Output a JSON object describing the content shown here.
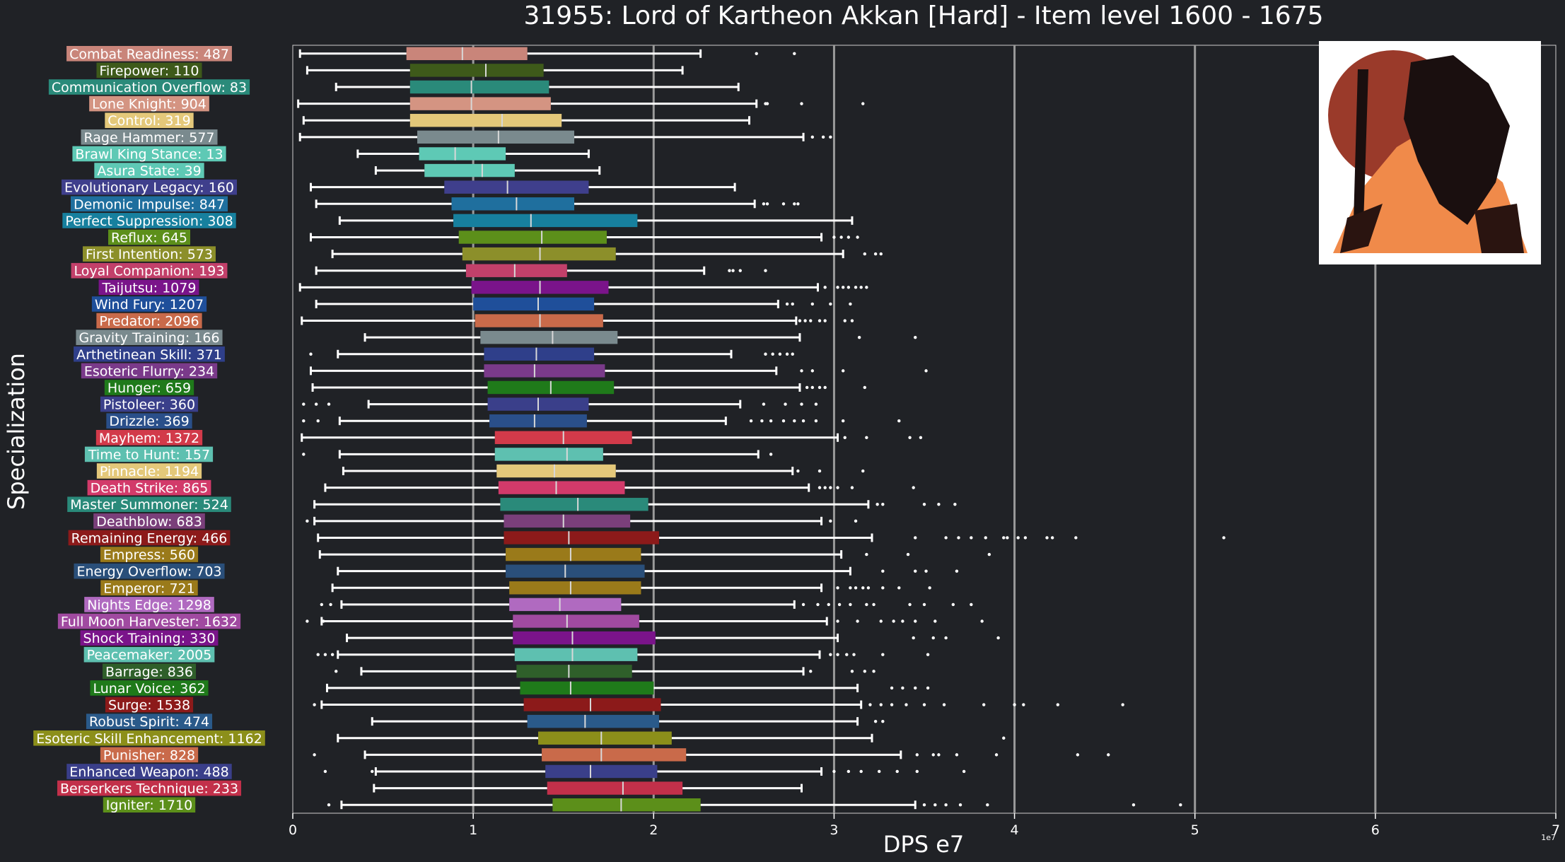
{
  "chart_data": {
    "type": "boxplot",
    "orientation": "horizontal",
    "title": "31955: Lord of Kartheon Akkan [Hard] - Item level 1600 - 1675",
    "xlabel": "DPS e7",
    "ylabel": "Specialization",
    "xlim": [
      0,
      7
    ],
    "xticks": [
      0,
      1,
      2,
      3,
      4,
      5,
      6,
      7
    ],
    "tick_labels": [
      "0",
      "1",
      "2",
      "3",
      "4",
      "5",
      "6",
      "7"
    ],
    "offset_text": "1e7",
    "grid": "vertical",
    "legend": "none",
    "image_description": "boss portrait (top-right)",
    "categories": [
      {
        "label": "Combat Readiness: 487",
        "color": "#c9857a",
        "min": 0.04,
        "q1": 0.63,
        "median": 0.94,
        "q3": 1.3,
        "max": 2.26,
        "outliers": [
          2.57,
          2.78
        ]
      },
      {
        "label": "Firepower: 110",
        "color": "#3e5a1a",
        "min": 0.08,
        "q1": 0.65,
        "median": 1.07,
        "q3": 1.39,
        "max": 2.16,
        "outliers": []
      },
      {
        "label": "Communication Overflow: 83",
        "color": "#2a8a7a",
        "min": 0.24,
        "q1": 0.65,
        "median": 0.99,
        "q3": 1.42,
        "max": 2.47,
        "outliers": []
      },
      {
        "label": "Lone Knight: 904",
        "color": "#d49482",
        "min": 0.03,
        "q1": 0.65,
        "median": 0.99,
        "q3": 1.43,
        "max": 2.57,
        "outliers": [
          2.62,
          2.63,
          2.82,
          3.16
        ]
      },
      {
        "label": "Control: 319",
        "color": "#e4c87a",
        "min": 0.06,
        "q1": 0.65,
        "median": 1.16,
        "q3": 1.49,
        "max": 2.53,
        "outliers": []
      },
      {
        "label": "Rage Hammer: 577",
        "color": "#7a8a8e",
        "min": 0.04,
        "q1": 0.69,
        "median": 1.14,
        "q3": 1.56,
        "max": 2.83,
        "outliers": [
          2.88,
          2.94,
          2.98
        ]
      },
      {
        "label": "Brawl King Stance: 13",
        "color": "#5ec9b5",
        "min": 0.36,
        "q1": 0.7,
        "median": 0.9,
        "q3": 1.18,
        "max": 1.64,
        "outliers": []
      },
      {
        "label": "Asura State: 39",
        "color": "#5ec9b5",
        "min": 0.46,
        "q1": 0.73,
        "median": 1.05,
        "q3": 1.23,
        "max": 1.7,
        "outliers": []
      },
      {
        "label": "Evolutionary Legacy: 160",
        "color": "#3f3f8c",
        "min": 0.1,
        "q1": 0.84,
        "median": 1.19,
        "q3": 1.64,
        "max": 2.45,
        "outliers": []
      },
      {
        "label": "Demonic Impulse: 847",
        "color": "#1f6f9e",
        "min": 0.13,
        "q1": 0.88,
        "median": 1.24,
        "q3": 1.56,
        "max": 2.56,
        "outliers": [
          2.61,
          2.63,
          2.72,
          2.78,
          2.8
        ]
      },
      {
        "label": "Perfect Suppression: 308",
        "color": "#17809e",
        "min": 0.26,
        "q1": 0.89,
        "median": 1.32,
        "q3": 1.91,
        "max": 3.1,
        "outliers": []
      },
      {
        "label": "Reflux: 645",
        "color": "#5c8f1a",
        "min": 0.1,
        "q1": 0.92,
        "median": 1.38,
        "q3": 1.74,
        "max": 2.93,
        "outliers": [
          3.0,
          3.04,
          3.08,
          3.13
        ]
      },
      {
        "label": "First Intention: 573",
        "color": "#8c8f2a",
        "min": 0.22,
        "q1": 0.94,
        "median": 1.37,
        "q3": 1.79,
        "max": 3.05,
        "outliers": [
          3.17,
          3.23,
          3.26
        ]
      },
      {
        "label": "Loyal Companion: 193",
        "color": "#c2406a",
        "min": 0.13,
        "q1": 0.96,
        "median": 1.23,
        "q3": 1.52,
        "max": 2.28,
        "outliers": [
          2.42,
          2.44,
          2.48,
          2.62
        ]
      },
      {
        "label": "Taijutsu: 1079",
        "color": "#7a148a",
        "min": 0.04,
        "q1": 0.99,
        "median": 1.37,
        "q3": 1.75,
        "max": 2.91,
        "outliers": [
          2.95,
          3.02,
          3.05,
          3.08,
          3.12,
          3.15,
          3.18
        ]
      },
      {
        "label": "Wind Fury: 1207",
        "color": "#1f4f9a",
        "min": 0.13,
        "q1": 1.0,
        "median": 1.36,
        "q3": 1.67,
        "max": 2.69,
        "outliers": [
          2.74,
          2.77,
          2.88,
          2.98,
          3.09
        ]
      },
      {
        "label": "Predator: 2096",
        "color": "#c96a4a",
        "min": 0.05,
        "q1": 1.01,
        "median": 1.37,
        "q3": 1.72,
        "max": 2.79,
        "outliers": [
          2.81,
          2.84,
          2.87,
          2.92,
          2.95,
          3.06,
          3.1
        ]
      },
      {
        "label": "Gravity Training: 166",
        "color": "#7a8a8e",
        "min": 0.4,
        "q1": 1.04,
        "median": 1.44,
        "q3": 1.8,
        "max": 2.81,
        "outliers": [
          3.14,
          3.45
        ]
      },
      {
        "label": "Arthetinean Skill: 371",
        "color": "#2f3f8a",
        "min": 0.25,
        "q1": 1.06,
        "median": 1.35,
        "q3": 1.67,
        "max": 2.43,
        "outliers": [
          2.62,
          2.66,
          2.7,
          2.74,
          2.77,
          0.1
        ]
      },
      {
        "label": "Esoteric Flurry: 234",
        "color": "#7a3a8a",
        "min": 0.1,
        "q1": 1.06,
        "median": 1.34,
        "q3": 1.73,
        "max": 2.68,
        "outliers": [
          2.82,
          2.88,
          3.05,
          3.51
        ]
      },
      {
        "label": "Hunger: 659",
        "color": "#1f7a1a",
        "min": 0.11,
        "q1": 1.08,
        "median": 1.43,
        "q3": 1.78,
        "max": 2.81,
        "outliers": [
          2.85,
          2.88,
          2.92,
          2.95,
          3.17
        ]
      },
      {
        "label": "Pistoleer: 360",
        "color": "#3a3f8a",
        "min": 0.42,
        "q1": 1.08,
        "median": 1.36,
        "q3": 1.64,
        "max": 2.48,
        "outliers": [
          0.06,
          0.13,
          0.2,
          2.61,
          2.73,
          2.82,
          2.9
        ]
      },
      {
        "label": "Drizzle: 369",
        "color": "#2a4f8a",
        "min": 0.26,
        "q1": 1.09,
        "median": 1.34,
        "q3": 1.63,
        "max": 2.4,
        "outliers": [
          0.06,
          0.14,
          2.54,
          2.6,
          2.65,
          2.72,
          2.78,
          2.83,
          2.9,
          3.05,
          3.36
        ]
      },
      {
        "label": "Mayhem: 1372",
        "color": "#d23a4a",
        "min": 0.05,
        "q1": 1.12,
        "median": 1.5,
        "q3": 1.88,
        "max": 3.02,
        "outliers": [
          3.06,
          3.18,
          3.42,
          3.48
        ]
      },
      {
        "label": "Time to Hunt: 157",
        "color": "#5ec0b0",
        "min": 0.26,
        "q1": 1.12,
        "median": 1.52,
        "q3": 1.72,
        "max": 2.58,
        "outliers": [
          0.06,
          2.65
        ]
      },
      {
        "label": "Pinnacle: 1194",
        "color": "#e4c87a",
        "min": 0.28,
        "q1": 1.13,
        "median": 1.45,
        "q3": 1.79,
        "max": 2.77,
        "outliers": [
          2.8,
          2.92,
          3.16
        ]
      },
      {
        "label": "Death Strike: 865",
        "color": "#d23a6a",
        "min": 0.18,
        "q1": 1.14,
        "median": 1.46,
        "q3": 1.84,
        "max": 2.86,
        "outliers": [
          2.92,
          2.95,
          2.98,
          3.02,
          3.1,
          3.44
        ]
      },
      {
        "label": "Master Summoner: 524",
        "color": "#2a8a7a",
        "min": 0.12,
        "q1": 1.15,
        "median": 1.58,
        "q3": 1.97,
        "max": 3.19,
        "outliers": [
          3.24,
          3.27,
          3.5,
          3.58,
          3.67
        ]
      },
      {
        "label": "Deathblow: 683",
        "color": "#7a3f7a",
        "min": 0.12,
        "q1": 1.17,
        "median": 1.5,
        "q3": 1.87,
        "max": 2.93,
        "outliers": [
          0.08,
          2.98,
          3.12
        ]
      },
      {
        "label": "Remaining Energy: 466",
        "color": "#8c1a1a",
        "min": 0.14,
        "q1": 1.17,
        "median": 1.53,
        "q3": 2.03,
        "max": 3.21,
        "outliers": [
          3.45,
          3.62,
          3.69,
          3.76,
          3.84,
          3.94,
          3.96,
          4.02,
          4.06,
          4.18,
          4.21,
          4.34,
          5.16
        ]
      },
      {
        "label": "Empress: 560",
        "color": "#9a7a1a",
        "min": 0.15,
        "q1": 1.18,
        "median": 1.54,
        "q3": 1.93,
        "max": 3.04,
        "outliers": [
          3.18,
          3.41,
          3.86
        ]
      },
      {
        "label": "Energy Overflow: 703",
        "color": "#2a4f7a",
        "min": 0.25,
        "q1": 1.18,
        "median": 1.51,
        "q3": 1.95,
        "max": 3.09,
        "outliers": [
          3.27,
          3.45,
          3.51,
          3.68
        ]
      },
      {
        "label": "Emperor: 721",
        "color": "#9a7a1a",
        "min": 0.22,
        "q1": 1.2,
        "median": 1.54,
        "q3": 1.93,
        "max": 2.93,
        "outliers": [
          3.02,
          3.09,
          3.12,
          3.16,
          3.19,
          3.27,
          3.36,
          3.53
        ]
      },
      {
        "label": "Nights Edge: 1298",
        "color": "#b06ac0",
        "min": 0.27,
        "q1": 1.2,
        "median": 1.48,
        "q3": 1.82,
        "max": 2.78,
        "outliers": [
          0.16,
          0.21,
          2.83,
          2.91,
          2.97,
          3.03,
          3.09,
          3.18,
          3.22,
          3.42,
          3.5,
          3.66,
          3.76
        ]
      },
      {
        "label": "Full Moon Harvester: 1632",
        "color": "#a04aa0",
        "min": 0.16,
        "q1": 1.22,
        "median": 1.52,
        "q3": 1.92,
        "max": 2.96,
        "outliers": [
          0.08,
          0.17,
          3.02,
          3.13,
          3.26,
          3.33,
          3.38,
          3.45,
          3.56,
          3.82
        ]
      },
      {
        "label": "Shock Training: 330",
        "color": "#7a148a",
        "min": 0.3,
        "q1": 1.22,
        "median": 1.55,
        "q3": 2.01,
        "max": 3.02,
        "outliers": [
          3.44,
          3.55,
          3.62,
          3.91
        ]
      },
      {
        "label": "Peacemaker: 2005",
        "color": "#5ec0b0",
        "min": 0.25,
        "q1": 1.23,
        "median": 1.55,
        "q3": 1.91,
        "max": 2.92,
        "outliers": [
          0.14,
          0.18,
          0.22,
          2.98,
          3.02,
          3.07,
          3.11,
          3.27,
          3.52
        ]
      },
      {
        "label": "Barrage: 836",
        "color": "#2f5f2a",
        "min": 0.38,
        "q1": 1.24,
        "median": 1.53,
        "q3": 1.88,
        "max": 2.83,
        "outliers": [
          0.24,
          2.87,
          3.1,
          3.17,
          3.22
        ]
      },
      {
        "label": "Lunar Voice: 362",
        "color": "#1f7a1a",
        "min": 0.19,
        "q1": 1.26,
        "median": 1.54,
        "q3": 2.0,
        "max": 3.13,
        "outliers": [
          3.32,
          3.38,
          3.45,
          3.52
        ]
      },
      {
        "label": "Surge: 1538",
        "color": "#8c1a1a",
        "min": 0.16,
        "q1": 1.28,
        "median": 1.65,
        "q3": 2.04,
        "max": 3.15,
        "outliers": [
          0.12,
          3.2,
          3.26,
          3.32,
          3.4,
          3.5,
          3.61,
          3.83,
          4.0,
          4.05,
          4.24,
          4.6
        ]
      },
      {
        "label": "Robust Spirit: 474",
        "color": "#2a5a8a",
        "min": 0.44,
        "q1": 1.3,
        "median": 1.62,
        "q3": 2.03,
        "max": 3.13,
        "outliers": [
          3.23,
          3.27
        ]
      },
      {
        "label": "Esoteric Skill Enhancement: 1162",
        "color": "#8c8f1a",
        "min": 0.25,
        "q1": 1.36,
        "median": 1.71,
        "q3": 2.1,
        "max": 3.21,
        "outliers": [
          3.94
        ]
      },
      {
        "label": "Punisher: 828",
        "color": "#c96a4a",
        "min": 0.4,
        "q1": 1.38,
        "median": 1.71,
        "q3": 2.18,
        "max": 3.37,
        "outliers": [
          0.12,
          3.46,
          3.55,
          3.58,
          3.68,
          3.9,
          4.35,
          4.52
        ]
      },
      {
        "label": "Enhanced Weapon: 488",
        "color": "#3a3f8a",
        "min": 0.46,
        "q1": 1.4,
        "median": 1.65,
        "q3": 2.02,
        "max": 2.93,
        "outliers": [
          0.18,
          0.44,
          3.0,
          3.08,
          3.15,
          3.25,
          3.35,
          3.46,
          3.72
        ]
      },
      {
        "label": "Berserkers Technique: 233",
        "color": "#c2304a",
        "min": 0.45,
        "q1": 1.41,
        "median": 1.83,
        "q3": 2.16,
        "max": 2.82,
        "outliers": []
      },
      {
        "label": "Igniter: 1710",
        "color": "#5c8f1a",
        "min": 0.27,
        "q1": 1.44,
        "median": 1.82,
        "q3": 2.26,
        "max": 3.45,
        "outliers": [
          0.2,
          3.5,
          3.56,
          3.62,
          3.7,
          3.85,
          4.66,
          4.92
        ]
      }
    ]
  }
}
